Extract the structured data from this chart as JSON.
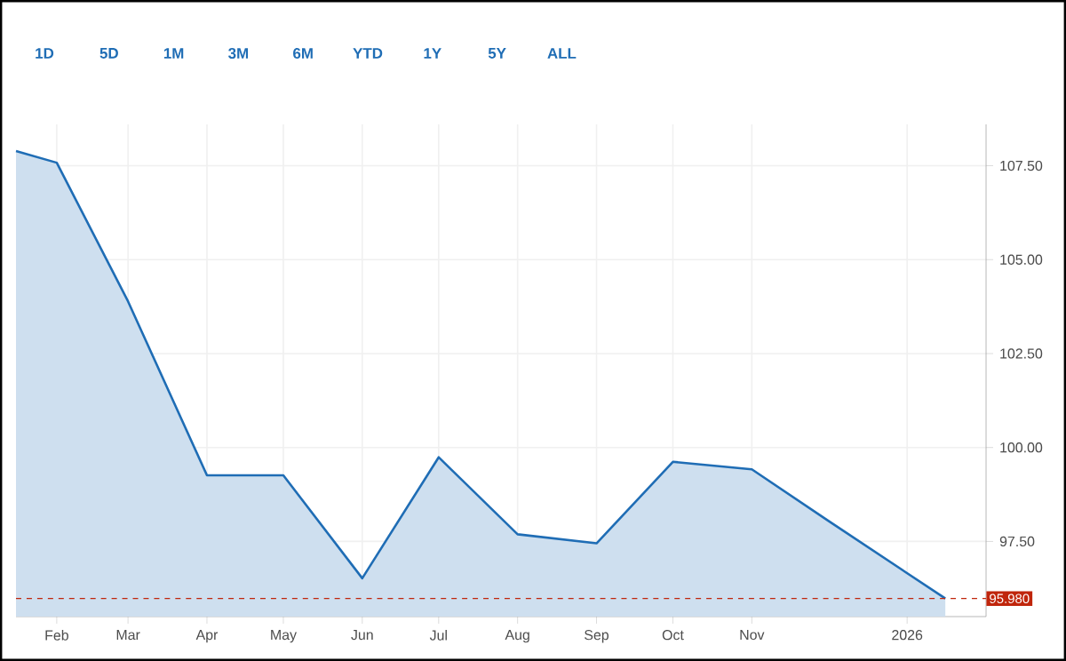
{
  "chart_data": {
    "type": "area",
    "x": [
      "2025-01-16",
      "2025-02-01",
      "2025-03-01",
      "2025-04-01",
      "2025-05-01",
      "2025-06-01",
      "2025-07-01",
      "2025-08-01",
      "2025-09-01",
      "2025-10-01",
      "2025-11-01",
      "2025-12-01",
      "2026-01-16"
    ],
    "series": [
      {
        "color": "#1f6db5",
        "values": [
          107.89,
          107.58,
          103.89,
          99.26,
          99.26,
          96.52,
          99.74,
          97.69,
          97.45,
          99.62,
          99.42,
          98.05,
          95.98
        ]
      }
    ],
    "xlim": [
      "2025-01-16",
      "2026-02-01"
    ],
    "xticks": [
      {
        "value": "2025-02-01",
        "label": "Feb"
      },
      {
        "value": "2025-03-01",
        "label": "Mar"
      },
      {
        "value": "2025-04-01",
        "label": "Apr"
      },
      {
        "value": "2025-05-01",
        "label": "May"
      },
      {
        "value": "2025-06-01",
        "label": "Jun"
      },
      {
        "value": "2025-07-01",
        "label": "Jul"
      },
      {
        "value": "2025-08-01",
        "label": "Aug"
      },
      {
        "value": "2025-09-01",
        "label": "Sep"
      },
      {
        "value": "2025-10-01",
        "label": "Oct"
      },
      {
        "value": "2025-11-01",
        "label": "Nov"
      },
      {
        "value": "2026-01-01",
        "label": "2026"
      }
    ],
    "ylim": [
      95.5,
      108.6
    ],
    "yticks": [
      {
        "value": 97.5,
        "label": "97.50"
      },
      {
        "value": 100,
        "label": "100.00"
      },
      {
        "value": 102.5,
        "label": "102.50"
      },
      {
        "value": 105,
        "label": "105.00"
      },
      {
        "value": 107.5,
        "label": "107.50"
      }
    ],
    "grid": true,
    "ref_lines": [
      {
        "axis": "y",
        "value": 95.98,
        "label": "95.980",
        "color": "#c0260c",
        "line_style": "dashed"
      }
    ],
    "annotations": [
      "1D",
      "5D",
      "1M",
      "3M",
      "6M",
      "YTD",
      "1Y",
      "5Y",
      "ALL"
    ]
  }
}
